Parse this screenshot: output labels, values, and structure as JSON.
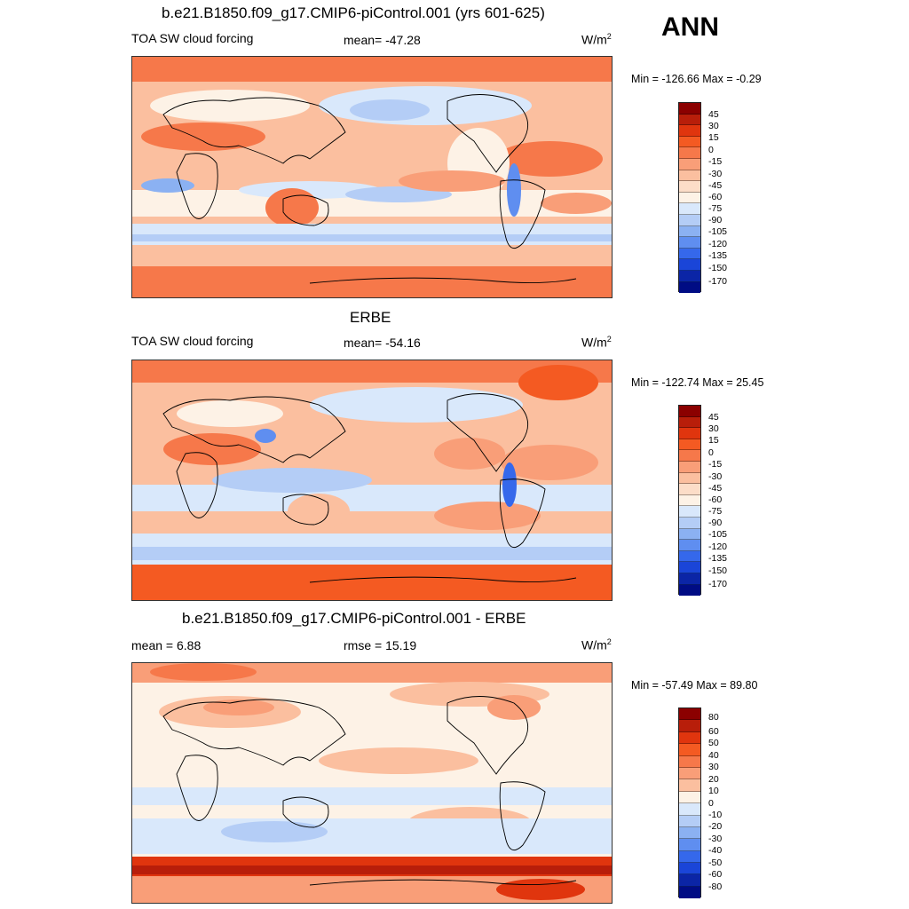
{
  "season": "ANN",
  "panels": [
    {
      "title": "b.e21.B1850.f09_g17.CMIP6-piControl.001 (yrs 601-625)",
      "left_label": "TOA SW cloud forcing",
      "center_label": "mean= -47.28",
      "units": "W/m",
      "units_sup": "2",
      "minmax": "Min = -126.66 Max =  -0.29",
      "colorbar_labels": [
        "45",
        "30",
        "15",
        "0",
        "-15",
        "-30",
        "-45",
        "-60",
        "-75",
        "-90",
        "-105",
        "-120",
        "-135",
        "-150",
        "-170"
      ]
    },
    {
      "title": "ERBE",
      "left_label": "TOA SW cloud forcing",
      "center_label": "mean= -54.16",
      "units": "W/m",
      "units_sup": "2",
      "minmax": "Min = -122.74 Max =  25.45",
      "colorbar_labels": [
        "45",
        "30",
        "15",
        "0",
        "-15",
        "-30",
        "-45",
        "-60",
        "-75",
        "-90",
        "-105",
        "-120",
        "-135",
        "-150",
        "-170"
      ]
    },
    {
      "title": "b.e21.B1850.f09_g17.CMIP6-piControl.001 - ERBE",
      "left_label": "mean =   6.88",
      "center_label": "rmse =  15.19",
      "units": "W/m",
      "units_sup": "2",
      "minmax": "Min = -57.49 Max =  89.80",
      "colorbar_labels": [
        "80",
        "60",
        "50",
        "40",
        "30",
        "20",
        "10",
        "0",
        "-10",
        "-20",
        "-30",
        "-40",
        "-50",
        "-60",
        "-80"
      ]
    }
  ],
  "colors": {
    "scale": [
      "#8b0000",
      "#b81e0a",
      "#e0350e",
      "#f45a22",
      "#f6784a",
      "#f99e78",
      "#fbbf9f",
      "#fcddc8",
      "#fdf2e6",
      "#d9e8fb",
      "#b4cdf6",
      "#8bb1f2",
      "#5f8ef0",
      "#3568eb",
      "#1a45d8",
      "#0b25a6",
      "#000c84"
    ],
    "land_line": "#000000"
  }
}
